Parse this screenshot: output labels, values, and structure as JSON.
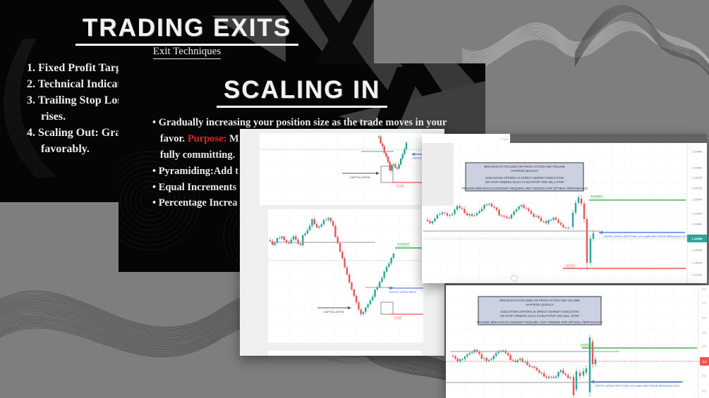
{
  "slide_trading_exits": {
    "title": "TRADING EXITS",
    "subtitle": "Exit Techniques",
    "lines": [
      {
        "marker": "1.",
        "text": "Fixed Profit Targ"
      },
      {
        "marker": "2.",
        "text": "Technical Indicat"
      },
      {
        "marker": "3.",
        "text": "Trailing Stop Los"
      },
      {
        "marker": "",
        "text": "rises."
      },
      {
        "marker": "4.",
        "text": "Scaling Out: Grad"
      },
      {
        "marker": "",
        "text": "favorably."
      }
    ]
  },
  "slide_scaling_in": {
    "title": "SCALING IN",
    "lines": [
      {
        "bullet": true,
        "segs": [
          {
            "t": "Gradually increasing your position size as the trade moves in your"
          }
        ]
      },
      {
        "bullet": false,
        "segs": [
          {
            "t": "favor. "
          },
          {
            "t": "Purpose:",
            "red": true
          },
          {
            "t": " M"
          }
        ]
      },
      {
        "bullet": false,
        "segs": [
          {
            "t": "fully committing."
          }
        ]
      },
      {
        "bullet": true,
        "segs": [
          {
            "t": "Pyramiding:Add t"
          }
        ]
      },
      {
        "bullet": true,
        "segs": [
          {
            "t": "Equal Increments"
          }
        ]
      },
      {
        "bullet": true,
        "segs": [
          {
            "t": "Percentage Increa"
          }
        ]
      }
    ]
  },
  "breakout_notes": {
    "lines": [
      "BREAKOUTS FOCUSES ON PRICE ACTION AND VOLUME",
      "HAPPENS QUICKLY",
      "EXECUTION CRITERIA IS DIRECT MARKET EXECUTION",
      "OR STOP ORDERS SUCH AS BUYSTOP AND SELL STOP",
      "TRADING BREAKOUTS DOESNOT REQUIRE LIMIT ORDERS FOR OPTIMAL PERFOMANCE"
    ]
  },
  "mid_window": {
    "chart1": {
      "capitulation": "CAPITULATION",
      "stop": "STOP",
      "entry": "ENTRY UPON SPO"
    },
    "chart2": {
      "target": "TARGET",
      "capitulation": "CAPITULATION",
      "stop": "STOP",
      "entry": "ENTRY UPON SPOT"
    }
  },
  "right_window": {
    "toolbar_price": "1.234",
    "target": "TARGET",
    "stops": "STOPS",
    "entry": "ENTRY UPON SPOTTING VOLUME AND  PRICE BREAKING OUT",
    "price_badge": "1.24698",
    "axis_labels": [
      "1.25400",
      "1.25300",
      "1.25200",
      "1.25100",
      "1.25000",
      "1.24900",
      "1.24800",
      "1.24600",
      "1.24500",
      "1.24400"
    ]
  },
  "bottom_window": {
    "target": "TARGET",
    "entry": "ENTRY UPON SPOTTING VOLUME AND  PRICE BREAKING OUT",
    "price_badge": "1.2",
    "axis_labels": [
      "1.2",
      "1.2",
      "1.2",
      "1.2",
      "1.2",
      "1.2",
      "1.2"
    ]
  },
  "colors": {
    "candle_up": "#26a69a",
    "candle_down": "#ef5350",
    "target_green": "#3fa63f",
    "target_line": "#4caf50",
    "stop_red": "#ef5350",
    "entry_blue": "#3d5fe0",
    "note_bg": "#c9cfdd",
    "accent_red_text": "#e02020"
  }
}
